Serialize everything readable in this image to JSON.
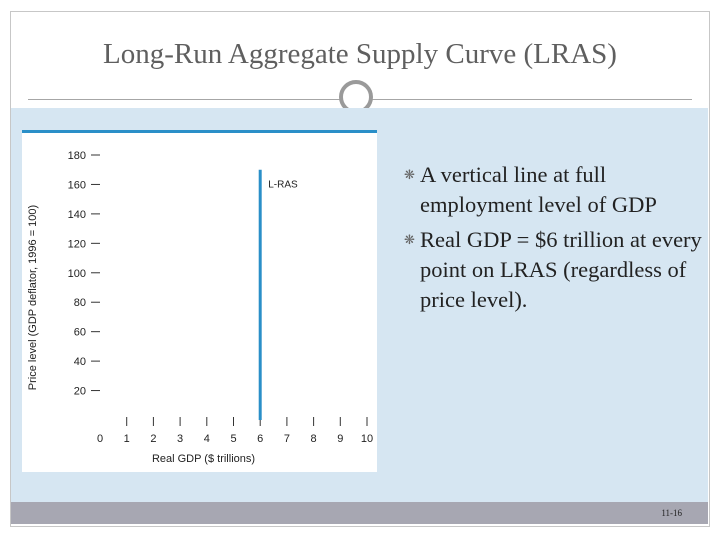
{
  "slide": {
    "title": "Long-Run Aggregate Supply Curve (LRAS)",
    "page_number": "11-16"
  },
  "bullets": [
    {
      "icon": "bullet-icon",
      "text": "A vertical line at full employment level of GDP"
    },
    {
      "icon": "bullet-icon",
      "text": "Real GDP = $6 trillion at every point on LRAS (regardless of price level)."
    }
  ],
  "chart_data": {
    "type": "line",
    "title": "",
    "xlabel": "Real GDP ($ trillions)",
    "ylabel": "Price level (GDP deflator, 1996 = 100)",
    "xlim": [
      0,
      10
    ],
    "ylim": [
      0,
      180
    ],
    "x_ticks": [
      0,
      1,
      2,
      3,
      4,
      5,
      6,
      7,
      8,
      9,
      10
    ],
    "y_ticks": [
      20,
      40,
      60,
      80,
      100,
      120,
      140,
      160,
      180
    ],
    "grid": false,
    "series": [
      {
        "name": "L-RAS",
        "color": "#2a8fc8",
        "points": [
          [
            6,
            0
          ],
          [
            6,
            170
          ]
        ]
      }
    ],
    "annotations": [
      {
        "text": "L-RAS",
        "x": 6.3,
        "y": 158
      }
    ],
    "accent_color": "#2a8fc8"
  }
}
